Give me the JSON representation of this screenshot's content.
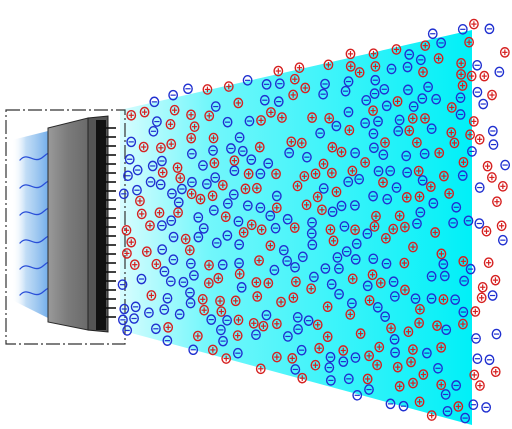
{
  "diagram": {
    "colors": {
      "background": "#ffffff",
      "air_flow": "#00f0f8",
      "housing_stroke": "#333333",
      "generator_body": "#8a8a8a",
      "emitter_strip": "#111111",
      "intake_glow": "#7fb6ec",
      "positive_ion": "#d62020",
      "negative_ion": "#2030d0",
      "intake_wave": "#2a4fd8"
    },
    "icons": {
      "positive_ion": "circled-plus-icon",
      "negative_ion": "circled-minus-icon",
      "intake_wave": "air-wave-icon"
    },
    "ion_field": {
      "positive_count": 210,
      "negative_count": 230
    }
  }
}
